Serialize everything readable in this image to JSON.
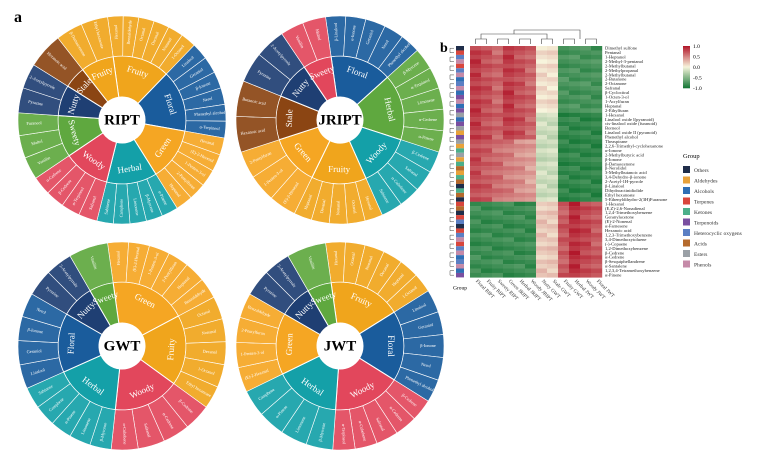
{
  "panel_a_label": "a",
  "panel_b_label": "b",
  "colors": {
    "Nutty": "#1f3f73",
    "Stale": "#8b4513",
    "Sweety": "#5fa83f",
    "Woody": "#e2475c",
    "Herbal": "#14a0a8",
    "Green": "#f5a623",
    "Floral": "#1a5c9c",
    "Fruity": "#f0a51c",
    "heat_high": "#b2182b",
    "heat_mid": "#f7f4dc",
    "heat_low": "#1a7a3a"
  },
  "wheels": [
    {
      "name": "RIPT",
      "categories": [
        {
          "label": "Fruity",
          "color": "#f0a51c",
          "span": 52,
          "sub": [
            "Hexanal",
            "Benzaldehyde",
            "Octanal",
            "Decanal",
            "Nonanal",
            "1-Octanol"
          ]
        },
        {
          "label": "Floral",
          "color": "#1a5c9c",
          "span": 56,
          "sub": [
            "Linalool",
            "Geraniol",
            "β-Ionone",
            "Nerol",
            "Phenethyl alcohol",
            "α-Terpineol"
          ]
        },
        {
          "label": "Green",
          "color": "#f5a623",
          "span": 48,
          "sub": [
            "Hexanal",
            "(E)-2-Hexenal",
            "1-Penten-3-ol",
            "2-Pentylfuran",
            "Heptanal"
          ]
        },
        {
          "label": "Herbal",
          "color": "#14a0a8",
          "span": 46,
          "sub": [
            "α-Pinene",
            "β-Myrcene",
            "Limonene",
            "Camphene",
            "Sabinene"
          ]
        },
        {
          "label": "Woody",
          "color": "#e2475c",
          "span": 42,
          "sub": [
            "Safranal",
            "α-Terpineol",
            "β-Cedrene",
            "α-Cedrene"
          ]
        },
        {
          "label": "Sweety",
          "color": "#5fa83f",
          "span": 38,
          "sub": [
            "Vanillin",
            "Maltol",
            "Furaneol"
          ]
        },
        {
          "label": "Nutty",
          "color": "#1f3f73",
          "span": 28,
          "sub": [
            "Pyrazine",
            "2-Acetylpyrrole"
          ]
        },
        {
          "label": "Stale",
          "color": "#8b4513",
          "span": 20,
          "sub": [
            "Hexanoic acid"
          ]
        },
        {
          "label": "Fruity",
          "color": "#f0a51c",
          "span": 30,
          "sub": [
            "β-Damascenone",
            "Ethyl hexanoate"
          ]
        }
      ]
    },
    {
      "name": "JRIPT",
      "categories": [
        {
          "label": "Floral",
          "color": "#1a5c9c",
          "span": 56,
          "sub": [
            "β-Linalool",
            "α-Ionone",
            "Geraniol",
            "Nerol",
            "Phenethyl alcohol"
          ]
        },
        {
          "label": "Herbal",
          "color": "#5fa83f",
          "span": 60,
          "sub": [
            "β-Myrcene",
            "α-Terpineol",
            "Limonene",
            "α-Cedrene",
            "α-Pinene"
          ]
        },
        {
          "label": "Woody",
          "color": "#14a0a8",
          "span": 48,
          "sub": [
            "β-Cedrene",
            "Safranal",
            "α-Cubebene",
            "Sabinene"
          ]
        },
        {
          "label": "Fruity",
          "color": "#f0a51c",
          "span": 50,
          "sub": [
            "Hexanal",
            "Octanal",
            "Nonanal",
            "Decanal",
            "Heptanal"
          ]
        },
        {
          "label": "Green",
          "color": "#f5a623",
          "span": 46,
          "sub": [
            "(E)-2-Hexenal",
            "1-Penten-3-ol",
            "2-Pentylfuran"
          ]
        },
        {
          "label": "Stale",
          "color": "#8b4513",
          "span": 40,
          "sub": [
            "Hexanoic acid",
            "Butanoic acid"
          ]
        },
        {
          "label": "Nutty",
          "color": "#1f3f73",
          "span": 34,
          "sub": [
            "Pyrazine",
            "2-Acetylpyrrole"
          ]
        },
        {
          "label": "Sweety",
          "color": "#e2475c",
          "span": 26,
          "sub": [
            "Vanillin",
            "Maltol"
          ]
        }
      ]
    },
    {
      "name": "GWT",
      "categories": [
        {
          "label": "Green",
          "color": "#f5a623",
          "span": 70,
          "sub": [
            "Hexanal",
            "(E)-2-Hexenal",
            "1-Penten-3-ol",
            "2-Pentylfuran",
            "Heptanal",
            "Benzaldehyde"
          ]
        },
        {
          "label": "Fruity",
          "color": "#f0a51c",
          "span": 64,
          "sub": [
            "Octanal",
            "Nonanal",
            "Decanal",
            "1-Octanol",
            "Ethyl hexanoate"
          ]
        },
        {
          "label": "Woody",
          "color": "#e2475c",
          "span": 60,
          "sub": [
            "β-Cedrene",
            "α-Cedrene",
            "Safranal",
            "α-Cubebene"
          ]
        },
        {
          "label": "Herbal",
          "color": "#14a0a8",
          "span": 60,
          "sub": [
            "β-Myrcene",
            "Limonene",
            "α-Pinene",
            "Camphene",
            "Sabinene"
          ]
        },
        {
          "label": "Floral",
          "color": "#1a5c9c",
          "span": 54,
          "sub": [
            "Linalool",
            "Geraniol",
            "β-Ionone",
            "Nerol"
          ]
        },
        {
          "label": "Nutty",
          "color": "#1f3f73",
          "span": 30,
          "sub": [
            "Pyrazine",
            "2-Acetylpyrrole"
          ]
        },
        {
          "label": "Sweety",
          "color": "#5fa83f",
          "span": 22,
          "sub": [
            "Vanillin"
          ]
        }
      ]
    },
    {
      "name": "JWT",
      "categories": [
        {
          "label": "Fruity",
          "color": "#f0a51c",
          "span": 66,
          "sub": [
            "Hexanal",
            "Octanal",
            "Nonanal",
            "Decanal",
            "Heptanal",
            "1-Octanol"
          ]
        },
        {
          "label": "Floral",
          "color": "#1a5c9c",
          "span": 64,
          "sub": [
            "Linalool",
            "Geraniol",
            "β-Ionone",
            "Nerol",
            "Phenethyl alcohol"
          ]
        },
        {
          "label": "Woody",
          "color": "#e2475c",
          "span": 62,
          "sub": [
            "β-Cedrene",
            "α-Cedrene",
            "Safranal",
            "α-Cubebene",
            "α-Terpineol"
          ]
        },
        {
          "label": "Herbal",
          "color": "#14a0a8",
          "span": 60,
          "sub": [
            "β-Myrcene",
            "Limonene",
            "α-Pinene",
            "Camphene"
          ]
        },
        {
          "label": "Green",
          "color": "#f5a623",
          "span": 56,
          "sub": [
            "(E)-2-Hexenal",
            "1-Penten-3-ol",
            "2-Pentylfuran",
            "Benzaldehyde"
          ]
        },
        {
          "label": "Nutty",
          "color": "#1f3f73",
          "span": 30,
          "sub": [
            "Pyrazine",
            "2-Acetylpyrrole"
          ]
        },
        {
          "label": "Sweety",
          "color": "#5fa83f",
          "span": 22,
          "sub": [
            "Vanillin"
          ]
        }
      ]
    }
  ],
  "heatmap": {
    "rows": [
      "Dimethyl sulfone",
      "Pentanal",
      "1-Heptanol",
      "2-Methyl-3-pentanol",
      "2-Methylbutanal",
      "2-Methylpropanal",
      "2-Methylbutanal",
      "2-Butanone",
      "2-Octanone",
      "Safranal",
      "β-Cyclocitral",
      "1-Octen-3-ol",
      "1-Acrylfuran",
      "Heptanal",
      "2-Ethylfuran",
      "1-Hexanol",
      "Linalool oxide I(pyranoid)",
      "cis-linalool oxide (furanoid)",
      "Borneol",
      "Linalool oxide II (pyranoid)",
      "Phenethyl alcohol",
      "Theaspirane",
      "2,2,6-Trimethyl-cyclohexanone",
      "α-Ionone",
      "2-Methylbutyric acid",
      "β-Ionone",
      "β-Damascenone",
      "β-Nerolidol",
      "3-Methylbutanoic acid",
      "3,4-Dehydro-β-ionone",
      "2-Acetyl-1H-pyrrole",
      "β-Linalool",
      "Dihydroactinidiolide",
      "Ethyl hexanoate",
      "5-Ethenyldihydro-2(3H)Furanone",
      "1-Hexanol",
      "(E,Z)-2,6-Nonadienal",
      "1,2,4-Trimethoxybenzene",
      "Geranylacetone",
      "(E)-2-Nonenal",
      "α-Farnesene",
      "Hexanoic acid",
      "1,2,3-Trimethoxybenzene",
      "3,4-Dimethoxytoluene",
      "(-)-Copaene",
      "1,2-Dimethoxybenzene",
      "β-Cedrene",
      "α-Cedrene",
      "β-Sesquiphellandrene",
      "α-Santalene",
      "1,2,3,4-Tetramethoxybenzene",
      "α-Pinene"
    ],
    "cols": [
      "RIPT",
      "RIPT",
      "RIPT",
      "JRIPT",
      "JRIPT",
      "JRIPT",
      "GWT",
      "GWT",
      "GWT",
      "JWT",
      "JWT",
      "JWT"
    ],
    "col_labels_rotated": [
      "Floral",
      "Fruity",
      "Sweety",
      "Green",
      "Herbal",
      "Woody",
      "Nutty",
      "Stale",
      "Fruity",
      "Herbal",
      "Woody",
      "Floral"
    ],
    "scale_labels": [
      "1.0",
      "0.5",
      "0.0",
      "-0.5",
      "-1.0"
    ],
    "group_axis_label": "Group",
    "legend_title": "Group",
    "legend_items": [
      {
        "label": "Others",
        "color": "#1f2d4a"
      },
      {
        "label": "Aldehydes",
        "color": "#e8a23a"
      },
      {
        "label": "Alcohols",
        "color": "#2f6fb5"
      },
      {
        "label": "Terpenes",
        "color": "#d9463c"
      },
      {
        "label": "Ketones",
        "color": "#4caf8a"
      },
      {
        "label": "Terpenoids",
        "color": "#7a4fa0"
      },
      {
        "label": "Heterocyclic oxygens",
        "color": "#5b7fc4"
      },
      {
        "label": "Acids",
        "color": "#b56a2c"
      },
      {
        "label": "Esters",
        "color": "#9aa0a6"
      },
      {
        "label": "Phenols",
        "color": "#c58aa8"
      }
    ]
  }
}
